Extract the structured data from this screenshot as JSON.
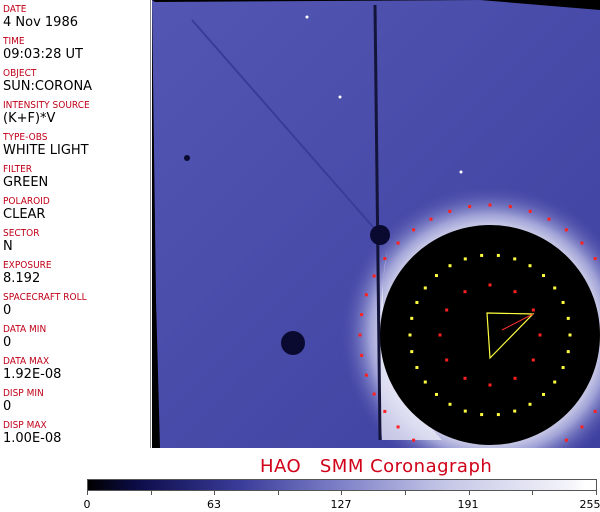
{
  "fields": [
    {
      "label": "DATE",
      "value": "4 Nov 1986"
    },
    {
      "label": "TIME",
      "value": "09:03:28 UT"
    },
    {
      "label": "OBJECT",
      "value": "SUN:CORONA"
    },
    {
      "label": "INTENSITY SOURCE",
      "value": "(K+F)*V"
    },
    {
      "label": "TYPE-OBS",
      "value": "WHITE LIGHT"
    },
    {
      "label": "FILTER",
      "value": "GREEN"
    },
    {
      "label": "POLAROID",
      "value": "CLEAR"
    },
    {
      "label": "SECTOR",
      "value": "N"
    },
    {
      "label": "EXPOSURE",
      "value": "8.192"
    },
    {
      "label": "SPACECRAFT ROLL",
      "value": "0"
    },
    {
      "label": "DATA MIN",
      "value": "0"
    },
    {
      "label": "DATA MAX",
      "value": "1.92E-08"
    },
    {
      "label": "DISP MIN",
      "value": "0"
    },
    {
      "label": "DISP MAX",
      "value": "1.00E-08"
    }
  ],
  "title": "HAO   SMM Coronagraph",
  "colorbar": {
    "ticks": [
      "0",
      "63",
      "127",
      "191",
      "255"
    ],
    "min": 0,
    "max": 255,
    "colormap": "black-blue-white"
  },
  "colors": {
    "label": "#c00018",
    "image_blue": "#4a4caa",
    "marker_red": "#ff2020",
    "marker_yellow": "#ffff40"
  }
}
